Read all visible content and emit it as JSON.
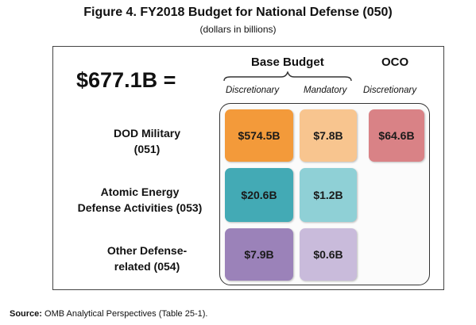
{
  "figure": {
    "title": "Figure 4. FY2018 Budget for National Defense (050)",
    "subtitle": "(dollars in billions)",
    "total": "$677.1B ="
  },
  "columns": {
    "base_budget": "Base Budget",
    "oco": "OCO",
    "base_discretionary": "Discretionary",
    "base_mandatory": "Mandatory",
    "oco_discretionary": "Discretionary"
  },
  "rows": [
    {
      "label_line1": "DOD Military",
      "label_line2": "(051)",
      "base_discretionary": "$574.5B",
      "base_mandatory": "$7.8B",
      "oco_discretionary": "$64.6B"
    },
    {
      "label_line1": "Atomic Energy",
      "label_line2": "Defense Activities (053)",
      "base_discretionary": "$20.6B",
      "base_mandatory": "$1.2B"
    },
    {
      "label_line1": "Other Defense-",
      "label_line2": "related (054)",
      "base_discretionary": "$7.9B",
      "base_mandatory": "$0.6B"
    }
  ],
  "colors": {
    "dod_discretionary": "#f39a3a",
    "dod_mandatory": "#f8c58f",
    "dod_oco": "#d98286",
    "aea_discretionary": "#43aab5",
    "aea_mandatory": "#8fd0d6",
    "other_discretionary": "#9b82b9",
    "other_mandatory": "#c9bbdb"
  },
  "footer": {
    "source_label": "Source:",
    "source_text": "OMB Analytical Perspectives (Table 25-1)."
  }
}
